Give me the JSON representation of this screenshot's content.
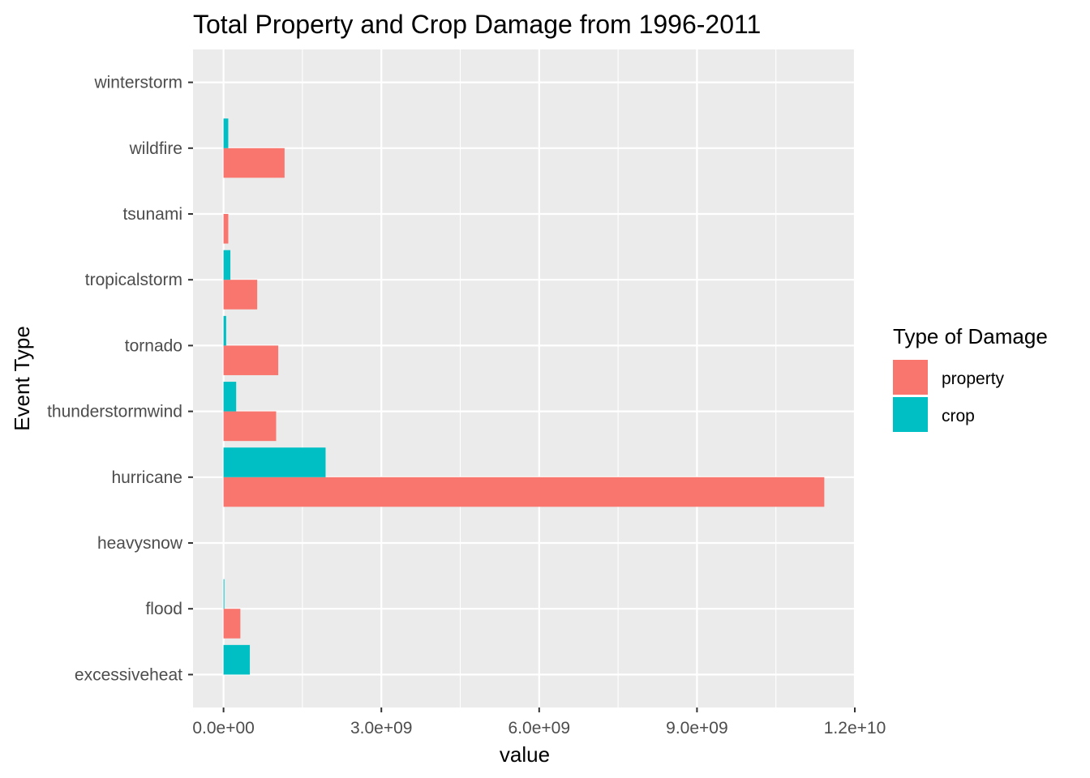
{
  "chart_data": {
    "type": "bar",
    "orientation": "horizontal",
    "title": "Total Property and Crop Damage from 1996-2011",
    "xlabel": "value",
    "ylabel": "Event Type",
    "categories": [
      "excessiveheat",
      "flood",
      "heavysnow",
      "hurricane",
      "thunderstormwind",
      "tornado",
      "tropicalstorm",
      "tsunami",
      "wildfire",
      "winterstorm"
    ],
    "series": [
      {
        "name": "property",
        "color": "#F8766D",
        "values": [
          0,
          320000000,
          0,
          11420000000,
          1000000000,
          1040000000,
          640000000,
          90000000,
          1160000000,
          0
        ]
      },
      {
        "name": "crop",
        "color": "#00BFC4",
        "values": [
          500000000,
          15000000,
          0,
          1940000000,
          240000000,
          50000000,
          130000000,
          0,
          90000000,
          0
        ]
      }
    ],
    "xlim": [
      -580000000,
      12000000000
    ],
    "x_ticks": [
      0,
      3000000000,
      6000000000,
      9000000000,
      12000000000
    ],
    "x_tick_labels": [
      "0.0e+00",
      "3.0e+09",
      "6.0e+09",
      "9.0e+09",
      "1.2e+10"
    ],
    "legend": {
      "title": "Type of Damage",
      "position": "right"
    },
    "grid": true
  }
}
